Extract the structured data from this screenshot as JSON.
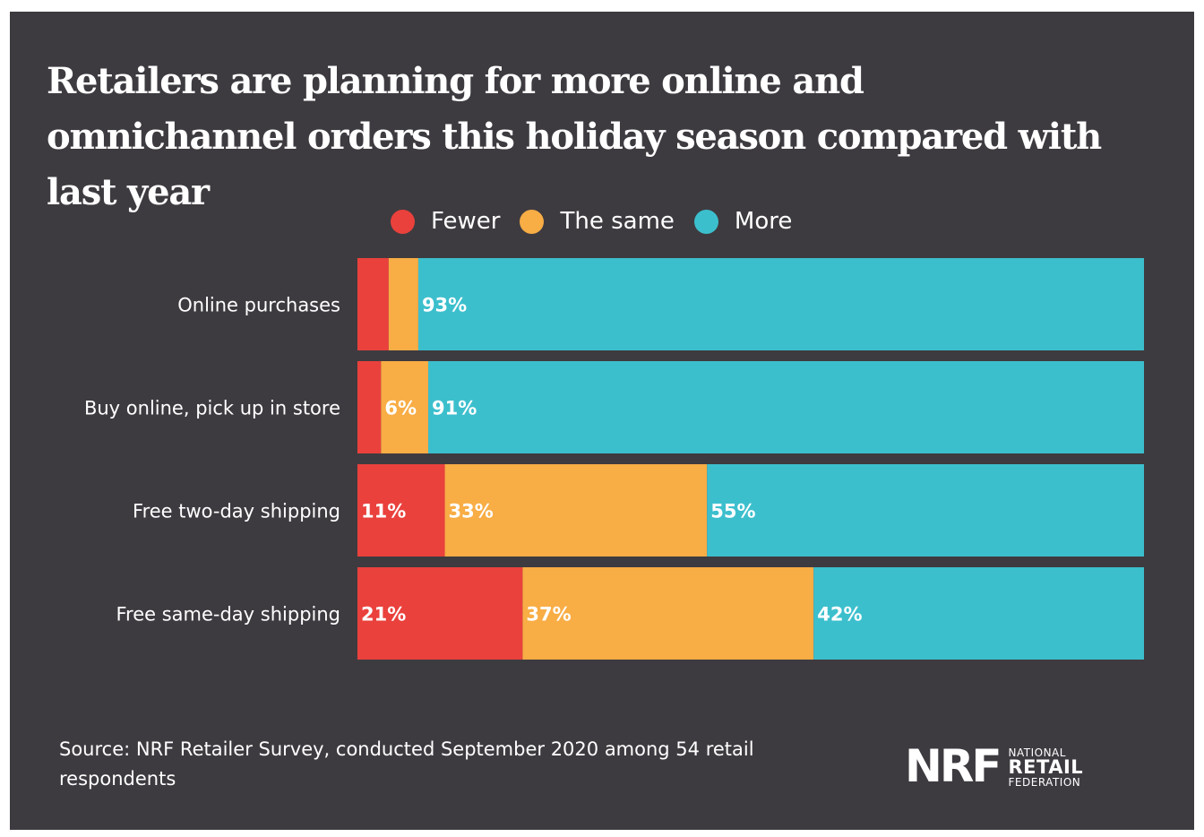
{
  "title": "Retailers are planning for more online and omnichannel orders this holiday season compared with last year",
  "source": "Source: NRF Retailer Survey, conducted September 2020 among 54 retail respondents",
  "logo": {
    "mark": "NRF",
    "line1": "NATIONAL",
    "line2": "RETAIL",
    "line3": "FEDERATION"
  },
  "colors": {
    "background": "#3e3b40",
    "fewer": "#ea413c",
    "same": "#f8ad45",
    "more": "#3cbfcd",
    "text": "#ffffff"
  },
  "chart_data": {
    "type": "bar",
    "orientation": "horizontal",
    "stacked": true,
    "normalized": true,
    "title": "Retailers are planning for more online and omnichannel orders this holiday season compared with last year",
    "xlabel": "",
    "ylabel": "",
    "xlim": [
      0,
      100
    ],
    "grid": false,
    "legend_position": "top",
    "categories": [
      "Online purchases",
      "Buy online, pick up in store",
      "Free two-day shipping",
      "Free same-day shipping"
    ],
    "series": [
      {
        "name": "Fewer",
        "color": "#ea413c",
        "values": [
          4,
          3,
          11,
          21
        ],
        "labels": [
          "",
          "",
          "11%",
          "21%"
        ]
      },
      {
        "name": "The same",
        "color": "#f8ad45",
        "values": [
          3.8,
          6,
          33,
          37
        ],
        "labels": [
          "",
          "6%",
          "33%",
          "37%"
        ]
      },
      {
        "name": "More",
        "color": "#3cbfcd",
        "values": [
          93,
          91,
          55,
          42
        ],
        "labels": [
          "93%",
          "91%",
          "55%",
          "42%"
        ]
      }
    ]
  }
}
